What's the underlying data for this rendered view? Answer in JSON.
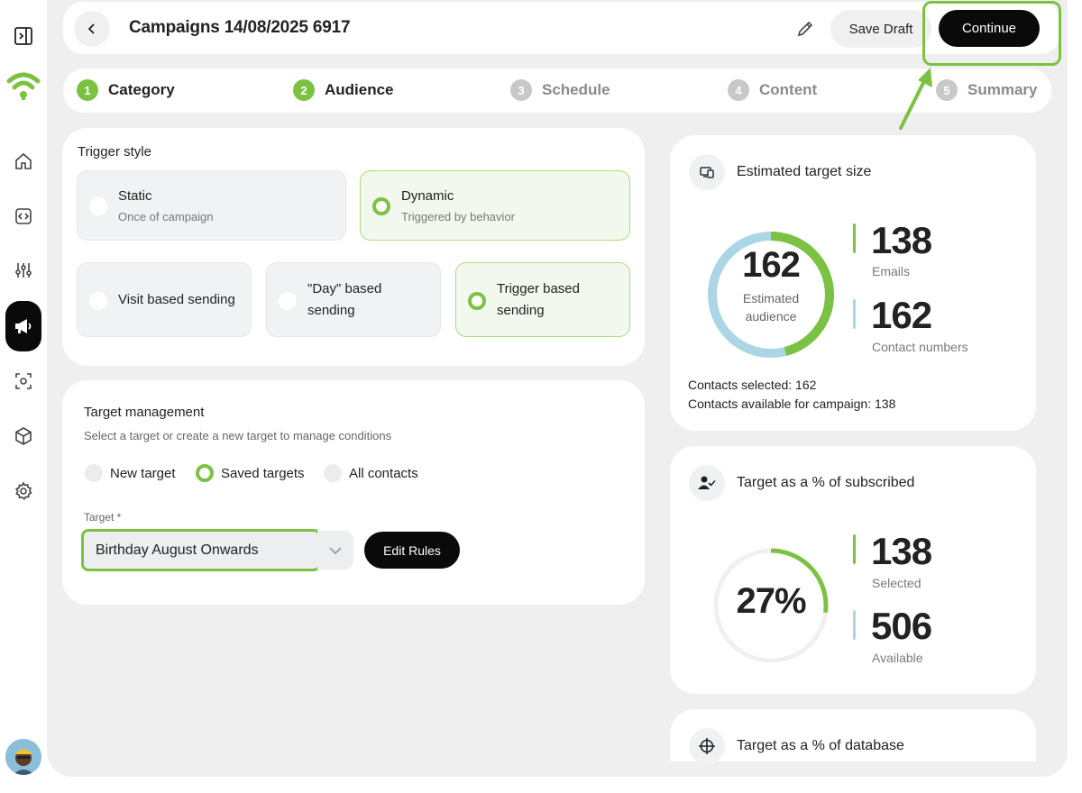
{
  "header": {
    "title": "Campaigns 14/08/2025 6917",
    "save_label": "Save Draft",
    "continue_label": "Continue"
  },
  "steps": [
    {
      "num": "1",
      "label": "Category",
      "state": "done"
    },
    {
      "num": "2",
      "label": "Audience",
      "state": "done"
    },
    {
      "num": "3",
      "label": "Schedule",
      "state": "todo"
    },
    {
      "num": "4",
      "label": "Content",
      "state": "todo"
    },
    {
      "num": "5",
      "label": "Summary",
      "state": "todo"
    }
  ],
  "trigger": {
    "title": "Trigger style",
    "static_title": "Static",
    "static_sub": "Once of campaign",
    "dynamic_title": "Dynamic",
    "dynamic_sub": "Triggered by behavior",
    "visit_label": "Visit based sending",
    "day_label_1": "\"Day\" based",
    "day_label_2": "sending",
    "trigger_label_1": "Trigger based",
    "trigger_label_2": "sending"
  },
  "target": {
    "title": "Target management",
    "subtitle": "Select a target or create a new target to manage conditions",
    "options": [
      "New target",
      "Saved targets",
      "All contacts"
    ],
    "selected_option": "Saved targets",
    "field_label": "Target *",
    "selected_value": "Birthday August Onwards",
    "edit_rules_label": "Edit Rules"
  },
  "estimated": {
    "title": "Estimated target size",
    "center_value": "162",
    "center_label_1": "Estimated",
    "center_label_2": "audience",
    "emails_value": "138",
    "emails_label": "Emails",
    "contacts_value": "162",
    "contacts_label": "Contact numbers",
    "selected_text": "Contacts selected: 162",
    "available_text": "Contacts available for campaign: 138",
    "emails_fraction": 0.46
  },
  "subscribed": {
    "title": "Target as a % of subscribed",
    "percent_label": "27%",
    "percent": 27,
    "selected_value": "138",
    "selected_label": "Selected",
    "available_value": "506",
    "available_label": "Available"
  },
  "database": {
    "title": "Target as a % of database"
  },
  "colors": {
    "accent": "#7cc242",
    "ring_blue": "#acd6e6",
    "dark": "#0a0a0a"
  }
}
